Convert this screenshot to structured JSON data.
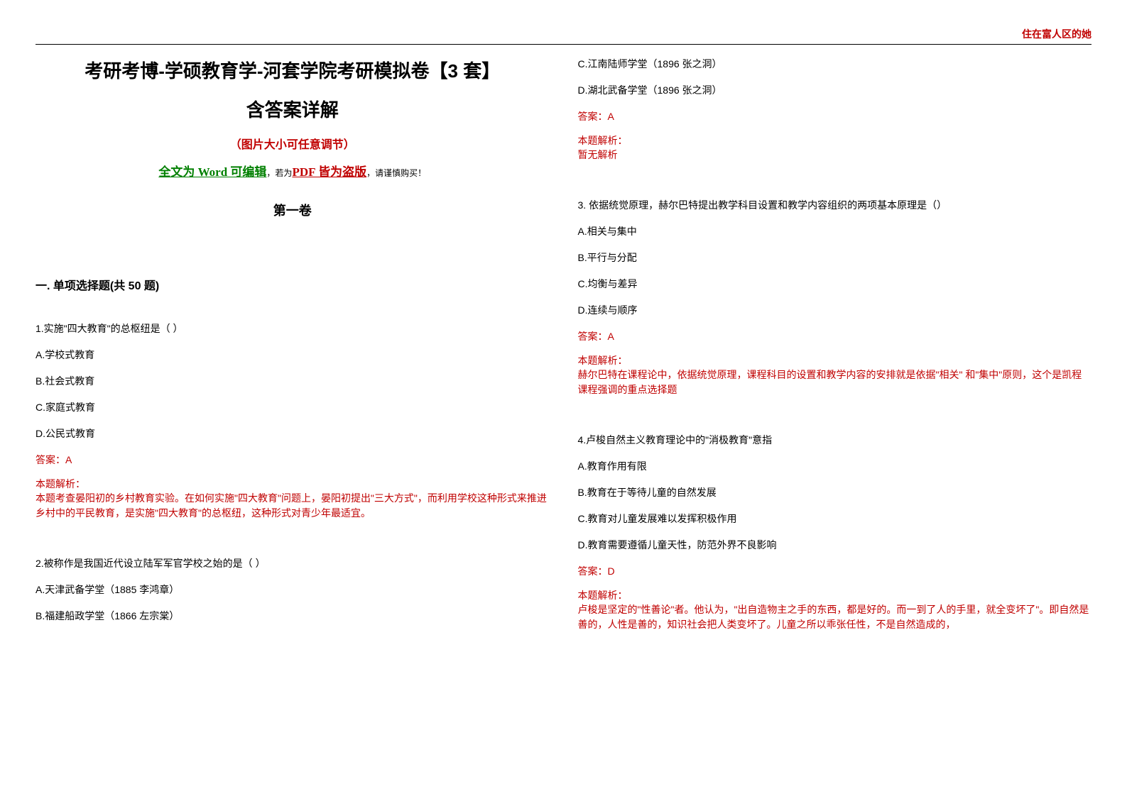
{
  "watermark": "住在富人区的她",
  "header": {
    "main_title": "考研考博-学硕教育学-河套学院考研模拟卷【3 套】",
    "sub_title": "含答案详解",
    "note_red": "（图片大小可任意调节）",
    "edit_prefix_green": "全文为 Word 可编辑",
    "edit_mid": "，若为",
    "edit_red": "PDF 皆为盗版",
    "edit_suffix": "，请谨慎购买！",
    "volume": "第一卷",
    "section": "一. 单项选择题(共 50 题)"
  },
  "colors": {
    "red": "#c00000",
    "green": "#008000",
    "text": "#000000",
    "background": "#ffffff"
  },
  "q1": {
    "stem": "1.实施\"四大教育\"的总枢纽是（ ）",
    "a": "A.学校式教育",
    "b": "B.社会式教育",
    "c": "C.家庭式教育",
    "d": "D.公民式教育",
    "answer": "答案：A",
    "analysis_label": "本题解析：",
    "analysis": "本题考查晏阳初的乡村教育实验。在如何实施\"四大教育\"问题上，晏阳初提出\"三大方式\"，而利用学校这种形式来推进乡村中的平民教育，是实施\"四大教育\"的总枢纽，这种形式对青少年最适宜。"
  },
  "q2": {
    "stem": "2.被称作是我国近代设立陆军军官学校之始的是（ ）",
    "a": "A.天津武备学堂（1885 李鸿章）",
    "b": "B.福建船政学堂（1866 左宗棠）",
    "c": "C.江南陆师学堂（1896 张之洞）",
    "d": "D.湖北武备学堂（1896 张之洞）",
    "answer": "答案：A",
    "analysis_label": "本题解析：",
    "analysis": "暂无解析"
  },
  "q3": {
    "stem": "3. 依据统觉原理，赫尔巴特提出教学科目设置和教学内容组织的两项基本原理是（）",
    "a": "A.相关与集中",
    "b": "B.平行与分配",
    "c": "C.均衡与差异",
    "d": "D.连续与顺序",
    "answer": "答案：A",
    "analysis_label": "本题解析：",
    "analysis": "赫尔巴特在课程论中，依据统觉原理，课程科目的设置和教学内容的安排就是依据\"相关\" 和\"集中\"原则，这个是凯程课程强调的重点选择题"
  },
  "q4": {
    "stem": "4.卢梭自然主义教育理论中的\"消极教育\"意指",
    "a": "A.教育作用有限",
    "b": "B.教育在于等待儿童的自然发展",
    "c": "C.教育对儿童发展难以发挥积极作用",
    "d": "D.教育需要遵循儿童天性，防范外界不良影响",
    "answer": "答案：D",
    "analysis_label": "本题解析：",
    "analysis": "卢梭是坚定的\"性善论\"者。他认为，\"出自造物主之手的东西，都是好的。而一到了人的手里，就全变坏了\"。即自然是善的，人性是善的，知识社会把人类变坏了。儿童之所以乖张任性，不是自然造成的，"
  }
}
